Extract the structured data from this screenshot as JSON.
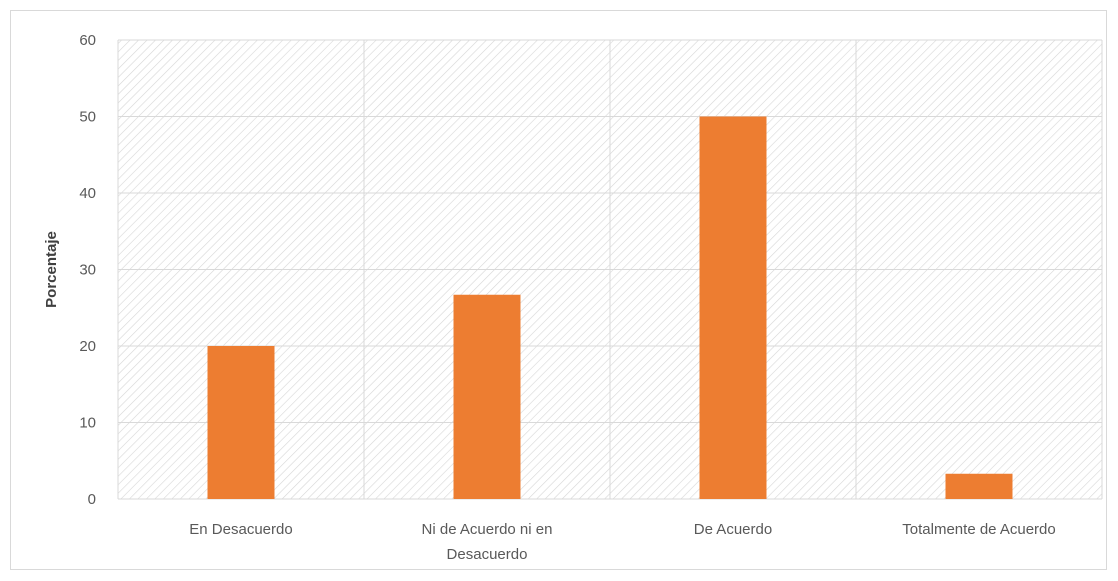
{
  "chart_data": {
    "type": "bar",
    "title": "",
    "xlabel": "",
    "ylabel": "Porcentaje",
    "categories": [
      [
        "En Desacuerdo"
      ],
      [
        "Ni de Acuerdo ni en",
        "Desacuerdo"
      ],
      [
        "De Acuerdo"
      ],
      [
        "Totalmente de Acuerdo"
      ]
    ],
    "values": [
      20,
      26.7,
      50,
      3.3
    ],
    "ylim": [
      0,
      60
    ],
    "yticks": [
      0,
      10,
      20,
      30,
      40,
      50,
      60
    ],
    "grid": true,
    "legend": "none",
    "bar_color": "#ED7D31",
    "background_pattern": "diagonal-hatch",
    "hatch_color": "#d6d6d6",
    "grid_color": "#d9d9d9"
  }
}
